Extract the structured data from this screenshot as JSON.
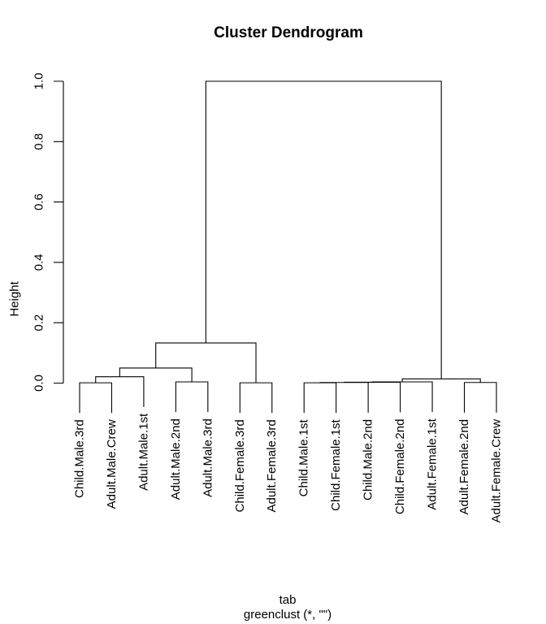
{
  "colors": {
    "line": "#000000",
    "text": "#000000",
    "background": "#ffffff"
  },
  "chart_data": {
    "type": "dendrogram",
    "title": "Cluster Dendrogram",
    "ylabel": "Height",
    "xlabel": "tab",
    "sub": "greenclust (*, \"\")",
    "ylim": [
      0.0,
      1.0
    ],
    "yticks": [
      "0.0",
      "0.2",
      "0.4",
      "0.6",
      "0.8",
      "1.0"
    ],
    "grid": false,
    "hang": 0.1,
    "leaves": [
      "Child.Male.3rd",
      "Adult.Male.Crew",
      "Adult.Male.1st",
      "Adult.Male.2nd",
      "Adult.Male.3rd",
      "Child.Female.3rd",
      "Adult.Female.3rd",
      "Child.Male.1st",
      "Child.Female.1st",
      "Child.Male.2nd",
      "Child.Female.2nd",
      "Adult.Female.1st",
      "Adult.Female.2nd",
      "Adult.Female.Crew"
    ],
    "merges": [
      {
        "id": "m1",
        "children": [
          "l1",
          "l2"
        ],
        "height": 0.001
      },
      {
        "id": "m2",
        "children": [
          "m1",
          "l3"
        ],
        "height": 0.021
      },
      {
        "id": "m3",
        "children": [
          "l4",
          "l5"
        ],
        "height": 0.004
      },
      {
        "id": "m4",
        "children": [
          "m2",
          "m3"
        ],
        "height": 0.05
      },
      {
        "id": "m5",
        "children": [
          "l6",
          "l7"
        ],
        "height": 0.001
      },
      {
        "id": "m6",
        "children": [
          "m4",
          "m5"
        ],
        "height": 0.133
      },
      {
        "id": "m7",
        "children": [
          "l8",
          "l9"
        ],
        "height": 0.001
      },
      {
        "id": "m8",
        "children": [
          "m7",
          "l10"
        ],
        "height": 0.002
      },
      {
        "id": "m9",
        "children": [
          "m8",
          "l11"
        ],
        "height": 0.003
      },
      {
        "id": "m10",
        "children": [
          "m9",
          "l12"
        ],
        "height": 0.004
      },
      {
        "id": "m11",
        "children": [
          "l13",
          "l14"
        ],
        "height": 0.002
      },
      {
        "id": "m12",
        "children": [
          "m10",
          "m11"
        ],
        "height": 0.014
      },
      {
        "id": "m13",
        "children": [
          "m6",
          "m12"
        ],
        "height": 1.0
      }
    ]
  }
}
